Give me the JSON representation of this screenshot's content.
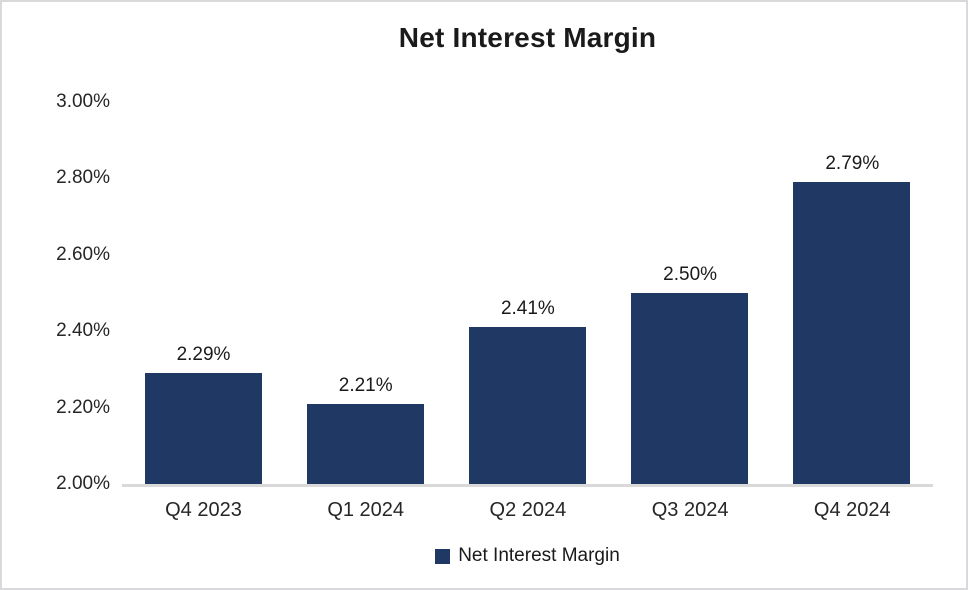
{
  "chart_data": {
    "type": "bar",
    "title": "Net Interest Margin",
    "categories": [
      "Q4 2023",
      "Q1 2024",
      "Q2 2024",
      "Q3 2024",
      "Q4 2024"
    ],
    "values": [
      2.29,
      2.21,
      2.41,
      2.5,
      2.79
    ],
    "data_labels": [
      "2.29%",
      "2.21%",
      "2.41%",
      "2.50%",
      "2.79%"
    ],
    "xlabel": "",
    "ylabel": "",
    "ylim": [
      2.0,
      3.0
    ],
    "yticks": {
      "values": [
        2.0,
        2.2,
        2.4,
        2.6,
        2.8,
        3.0
      ],
      "labels": [
        "2.00%",
        "2.20%",
        "2.40%",
        "2.60%",
        "2.80%",
        "3.00%"
      ]
    },
    "grid": false,
    "legend": {
      "position": "bottom",
      "entries": [
        "Net Interest Margin"
      ]
    },
    "colors": {
      "bar": "#1F3864",
      "axis_line": "#D9D9D9",
      "title_text": "#1a1a1a",
      "label_text": "#262626"
    }
  }
}
